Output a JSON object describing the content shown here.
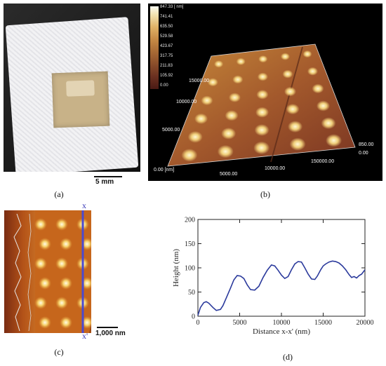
{
  "captions": {
    "a": "(a)",
    "b": "(b)",
    "c": "(c)",
    "d": "(d)"
  },
  "panel_a": {
    "scale_bar_label": "5 mm"
  },
  "panel_b": {
    "legend_labels": [
      "847.33 [ nm]",
      "741.41",
      "635.50",
      "529.58",
      "423.67",
      "317.75",
      "211.83",
      "105.92",
      "0.00"
    ],
    "axis_labels": {
      "y_upper": "15000.00",
      "y_mid": "10000.00",
      "y_low": "5000.00",
      "origin": "0.00 [nm]",
      "x_low": "5000.00",
      "x_mid": "10000.00",
      "x_high": "150000.00",
      "z_high": "850.00",
      "z_low": "0.00"
    }
  },
  "panel_c": {
    "top_label": "x",
    "bottom_label": "x'",
    "scale_bar_label": "1,000 nm"
  },
  "chart_data": {
    "type": "line",
    "xlabel": "Distance x-x' (nm)",
    "ylabel": "Height (nm)",
    "xlim": [
      0,
      20000
    ],
    "ylim": [
      0,
      200
    ],
    "xticks": [
      0,
      5000,
      10000,
      15000,
      20000
    ],
    "yticks": [
      0,
      50,
      100,
      150,
      200
    ],
    "series": [
      {
        "color": "#2b3a9c",
        "x": [
          0,
          300,
          700,
          1000,
          1300,
          1800,
          2200,
          2700,
          3000,
          3400,
          3900,
          4300,
          4700,
          5100,
          5500,
          5900,
          6300,
          6800,
          7300,
          7800,
          8300,
          8800,
          9200,
          9600,
          10000,
          10400,
          10800,
          11200,
          11600,
          12000,
          12400,
          12800,
          13200,
          13600,
          14000,
          14300,
          14700,
          15000,
          15300,
          15700,
          16100,
          16500,
          16900,
          17300,
          17700,
          18100,
          18400,
          18700,
          19000,
          19300,
          19600,
          20000
        ],
        "y": [
          2,
          18,
          28,
          30,
          27,
          18,
          12,
          14,
          22,
          38,
          58,
          75,
          84,
          83,
          78,
          65,
          55,
          54,
          62,
          80,
          95,
          106,
          104,
          95,
          85,
          78,
          82,
          96,
          108,
          113,
          112,
          100,
          87,
          77,
          76,
          83,
          96,
          104,
          108,
          112,
          114,
          113,
          110,
          104,
          96,
          86,
          80,
          82,
          79,
          84,
          87,
          96
        ]
      }
    ]
  }
}
